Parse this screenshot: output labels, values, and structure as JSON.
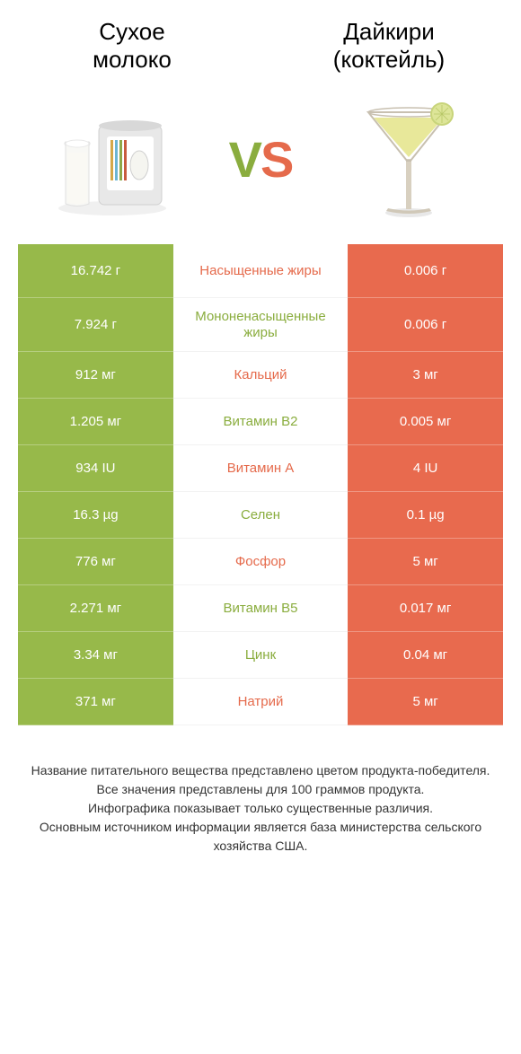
{
  "colors": {
    "left_bg": "#97b94a",
    "right_bg": "#e86a4e",
    "mid_bg": "#ffffff",
    "green_text": "#8aad3e",
    "orange_text": "#e56a4b",
    "title_color": "#000000",
    "footer_color": "#333333"
  },
  "header": {
    "left_title_line1": "Сухое",
    "left_title_line2": "молоко",
    "right_title_line1": "Дайкири",
    "right_title_line2": "(коктейль)"
  },
  "vs": {
    "v": "V",
    "s": "S"
  },
  "rows": [
    {
      "left": "16.742 г",
      "mid": "Насыщенные жиры",
      "right": "0.006 г",
      "mid_color": "orange",
      "tall": true
    },
    {
      "left": "7.924 г",
      "mid": "Мононенасыщенные жиры",
      "right": "0.006 г",
      "mid_color": "green",
      "tall": true
    },
    {
      "left": "912 мг",
      "mid": "Кальций",
      "right": "3 мг",
      "mid_color": "orange",
      "tall": false
    },
    {
      "left": "1.205 мг",
      "mid": "Витамин B2",
      "right": "0.005 мг",
      "mid_color": "green",
      "tall": false
    },
    {
      "left": "934 IU",
      "mid": "Витамин A",
      "right": "4 IU",
      "mid_color": "orange",
      "tall": false
    },
    {
      "left": "16.3 µg",
      "mid": "Селен",
      "right": "0.1 µg",
      "mid_color": "green",
      "tall": false
    },
    {
      "left": "776 мг",
      "mid": "Фосфор",
      "right": "5 мг",
      "mid_color": "orange",
      "tall": false
    },
    {
      "left": "2.271 мг",
      "mid": "Витамин B5",
      "right": "0.017 мг",
      "mid_color": "green",
      "tall": false
    },
    {
      "left": "3.34 мг",
      "mid": "Цинк",
      "right": "0.04 мг",
      "mid_color": "green",
      "tall": false
    },
    {
      "left": "371 мг",
      "mid": "Натрий",
      "right": "5 мг",
      "mid_color": "orange",
      "tall": false
    }
  ],
  "footer": {
    "line1": "Название питательного вещества представлено цветом продукта-победителя.",
    "line2": "Все значения представлены для 100 граммов продукта.",
    "line3": "Инфографика показывает только существенные различия.",
    "line4": "Основным источником информации является база министерства сельского хозяйства США."
  }
}
